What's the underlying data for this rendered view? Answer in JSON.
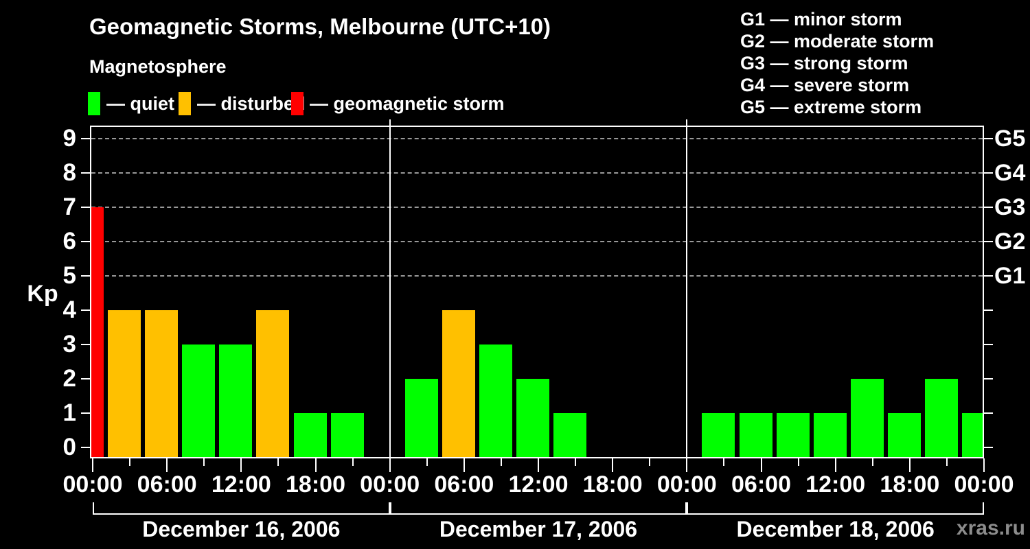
{
  "title": "Geomagnetic Storms, Melbourne (UTC+10)",
  "subtitle": "Magnetosphere",
  "kp_axis_label": "Kp",
  "watermark": "xras.ru",
  "condition_legend": [
    {
      "condition": "quiet",
      "label": "— quiet"
    },
    {
      "condition": "disturbed",
      "label": "— disturbed"
    },
    {
      "condition": "storm",
      "label": "— geomagnetic storm"
    }
  ],
  "storm_scale_legend": [
    "G1 — minor storm",
    "G2 — moderate storm",
    "G3 — strong storm",
    "G4 — severe storm",
    "G5 — extreme storm"
  ],
  "colors": {
    "background": "#000000",
    "quiet": "#00ff00",
    "disturbed": "#ffc000",
    "storm": "#ff0000",
    "grid": "#999999",
    "frame": "#ffffff",
    "text": "#ffffff",
    "watermark": "#8c8c8c"
  },
  "chart_data": {
    "type": "bar",
    "title": "Geomagnetic Storms, Melbourne (UTC+10)",
    "ylabel": "Kp",
    "ylim": [
      0,
      9
    ],
    "yticks": [
      0,
      1,
      2,
      3,
      4,
      5,
      6,
      7,
      8,
      9
    ],
    "grid": "dashed horizontal lines at Kp 5–9 only",
    "legend_position": "top",
    "g_levels": [
      {
        "label": "G1",
        "kp": 5
      },
      {
        "label": "G2",
        "kp": 6
      },
      {
        "label": "G3",
        "kp": 7
      },
      {
        "label": "G4",
        "kp": 8
      },
      {
        "label": "G5",
        "kp": 9
      }
    ],
    "hours_per_bar": 3,
    "x_hour_labels": {
      "0": "00:00",
      "6": "06:00",
      "12": "12:00",
      "18": "18:00"
    },
    "days": [
      {
        "date": "December 16, 2006",
        "bars": [
          {
            "hour": 0,
            "time": "00:00",
            "kp": 7,
            "condition": "storm"
          },
          {
            "hour": 3,
            "time": "03:00",
            "kp": 4,
            "condition": "disturbed"
          },
          {
            "hour": 6,
            "time": "06:00",
            "kp": 4,
            "condition": "disturbed"
          },
          {
            "hour": 9,
            "time": "09:00",
            "kp": 3,
            "condition": "quiet"
          },
          {
            "hour": 12,
            "time": "12:00",
            "kp": 3,
            "condition": "quiet"
          },
          {
            "hour": 15,
            "time": "15:00",
            "kp": 4,
            "condition": "disturbed"
          },
          {
            "hour": 18,
            "time": "18:00",
            "kp": 1,
            "condition": "quiet"
          },
          {
            "hour": 21,
            "time": "21:00",
            "kp": 1,
            "condition": "quiet"
          }
        ]
      },
      {
        "date": "December 17, 2006",
        "bars": [
          {
            "hour": 3,
            "time": "03:00",
            "kp": 2,
            "condition": "quiet"
          },
          {
            "hour": 6,
            "time": "06:00",
            "kp": 4,
            "condition": "disturbed"
          },
          {
            "hour": 9,
            "time": "09:00",
            "kp": 3,
            "condition": "quiet"
          },
          {
            "hour": 12,
            "time": "12:00",
            "kp": 2,
            "condition": "quiet"
          },
          {
            "hour": 15,
            "time": "15:00",
            "kp": 1,
            "condition": "quiet"
          }
        ]
      },
      {
        "date": "December 18, 2006",
        "bars": [
          {
            "hour": 3,
            "time": "03:00",
            "kp": 1,
            "condition": "quiet"
          },
          {
            "hour": 6,
            "time": "06:00",
            "kp": 1,
            "condition": "quiet"
          },
          {
            "hour": 9,
            "time": "09:00",
            "kp": 1,
            "condition": "quiet"
          },
          {
            "hour": 12,
            "time": "12:00",
            "kp": 1,
            "condition": "quiet"
          },
          {
            "hour": 15,
            "time": "15:00",
            "kp": 2,
            "condition": "quiet"
          },
          {
            "hour": 18,
            "time": "18:00",
            "kp": 1,
            "condition": "quiet"
          },
          {
            "hour": 21,
            "time": "21:00",
            "kp": 2,
            "condition": "quiet"
          },
          {
            "hour": 24,
            "time": "00:00",
            "kp": 1,
            "condition": "quiet"
          }
        ]
      }
    ]
  }
}
